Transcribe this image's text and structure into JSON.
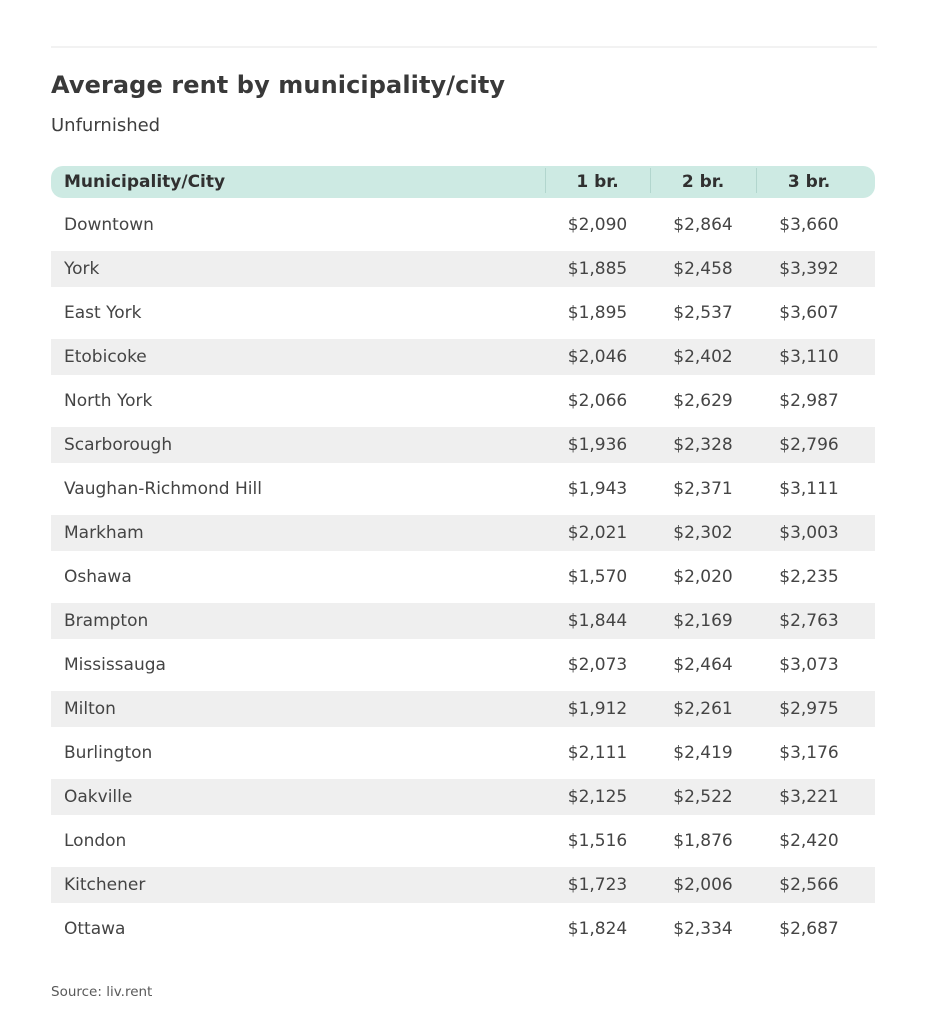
{
  "page": {
    "title": "Average rent by municipality/city",
    "subtitle": "Unfurnished",
    "source": "Source: liv.rent"
  },
  "table": {
    "columns": [
      "Municipality/City",
      "1 br.",
      "2 br.",
      "3 br."
    ],
    "rows": [
      {
        "city": "Downtown",
        "br1": "$2,090",
        "br2": "$2,864",
        "br3": "$3,660"
      },
      {
        "city": "York",
        "br1": "$1,885",
        "br2": "$2,458",
        "br3": "$3,392"
      },
      {
        "city": "East York",
        "br1": "$1,895",
        "br2": "$2,537",
        "br3": "$3,607"
      },
      {
        "city": "Etobicoke",
        "br1": "$2,046",
        "br2": "$2,402",
        "br3": "$3,110"
      },
      {
        "city": "North York",
        "br1": "$2,066",
        "br2": "$2,629",
        "br3": "$2,987"
      },
      {
        "city": "Scarborough",
        "br1": "$1,936",
        "br2": "$2,328",
        "br3": "$2,796"
      },
      {
        "city": "Vaughan-Richmond Hill",
        "br1": "$1,943",
        "br2": "$2,371",
        "br3": "$3,111"
      },
      {
        "city": "Markham",
        "br1": "$2,021",
        "br2": "$2,302",
        "br3": "$3,003"
      },
      {
        "city": "Oshawa",
        "br1": "$1,570",
        "br2": "$2,020",
        "br3": "$2,235"
      },
      {
        "city": "Brampton",
        "br1": "$1,844",
        "br2": "$2,169",
        "br3": "$2,763"
      },
      {
        "city": "Mississauga",
        "br1": "$2,073",
        "br2": "$2,464",
        "br3": "$3,073"
      },
      {
        "city": "Milton",
        "br1": "$1,912",
        "br2": "$2,261",
        "br3": "$2,975"
      },
      {
        "city": "Burlington",
        "br1": "$2,111",
        "br2": "$2,419",
        "br3": "$3,176"
      },
      {
        "city": "Oakville",
        "br1": "$2,125",
        "br2": "$2,522",
        "br3": "$3,221"
      },
      {
        "city": "London",
        "br1": "$1,516",
        "br2": "$1,876",
        "br3": "$2,420"
      },
      {
        "city": "Kitchener",
        "br1": "$1,723",
        "br2": "$2,006",
        "br3": "$2,566"
      },
      {
        "city": "Ottawa",
        "br1": "$1,824",
        "br2": "$2,334",
        "br3": "$2,687"
      }
    ]
  },
  "colors": {
    "header_bg": "#cdeae3",
    "header_divider": "#b2d6ce",
    "row_alt_bg": "#efefef",
    "text": "#3a3a3a"
  },
  "chart_data": {
    "type": "table",
    "title": "Average rent by municipality/city",
    "subtitle": "Unfurnished",
    "columns": [
      "Municipality/City",
      "1 br.",
      "2 br.",
      "3 br."
    ],
    "rows": [
      [
        "Downtown",
        2090,
        2864,
        3660
      ],
      [
        "York",
        1885,
        2458,
        3392
      ],
      [
        "East York",
        1895,
        2537,
        3607
      ],
      [
        "Etobicoke",
        2046,
        2402,
        3110
      ],
      [
        "North York",
        2066,
        2629,
        2987
      ],
      [
        "Scarborough",
        1936,
        2328,
        2796
      ],
      [
        "Vaughan-Richmond Hill",
        1943,
        2371,
        3111
      ],
      [
        "Markham",
        2021,
        2302,
        3003
      ],
      [
        "Oshawa",
        1570,
        2020,
        2235
      ],
      [
        "Brampton",
        1844,
        2169,
        2763
      ],
      [
        "Mississauga",
        2073,
        2464,
        3073
      ],
      [
        "Milton",
        1912,
        2261,
        2975
      ],
      [
        "Burlington",
        2111,
        2419,
        3176
      ],
      [
        "Oakville",
        2125,
        2522,
        3221
      ],
      [
        "London",
        1516,
        1876,
        2420
      ],
      [
        "Kitchener",
        1723,
        2006,
        2566
      ],
      [
        "Ottawa",
        1824,
        2334,
        2687
      ]
    ],
    "units": "CAD $/month",
    "source": "Source: liv.rent"
  }
}
